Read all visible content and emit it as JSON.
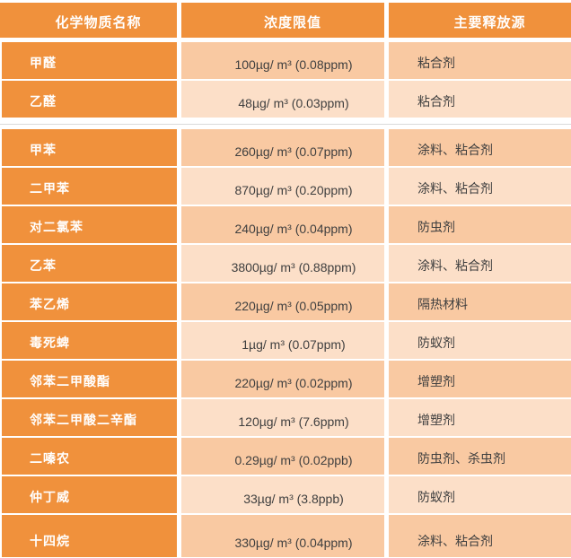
{
  "table": {
    "columns": [
      {
        "label": "化学物质名称"
      },
      {
        "label": "浓度限值"
      },
      {
        "label": "主要释放源"
      }
    ],
    "groups": [
      {
        "rows": [
          {
            "name": "甲醛",
            "limit": "100µg/ m³ (0.08ppm)",
            "source": "粘合剂"
          },
          {
            "name": "乙醛",
            "limit": "48µg/ m³ (0.03ppm)",
            "source": "粘合剂"
          }
        ]
      },
      {
        "rows": [
          {
            "name": "甲苯",
            "limit": "260µg/ m³ (0.07ppm)",
            "source": "涂料、粘合剂"
          },
          {
            "name": "二甲苯",
            "limit": "870µg/ m³ (0.20ppm)",
            "source": "涂料、粘合剂"
          },
          {
            "name": "对二氯苯",
            "limit": "240µg/ m³ (0.04ppm)",
            "source": "防虫剂"
          },
          {
            "name": "乙苯",
            "limit": "3800µg/ m³ (0.88ppm)",
            "source": "涂料、粘合剂"
          },
          {
            "name": "苯乙烯",
            "limit": "220µg/ m³ (0.05ppm)",
            "source": "隔热材料"
          },
          {
            "name": "毒死蜱",
            "limit": "1µg/ m³ (0.07ppm)",
            "source": "防蚁剂"
          },
          {
            "name": "邻苯二甲酸酯",
            "limit": "220µg/ m³ (0.02ppm)",
            "source": "增塑剂"
          },
          {
            "name": "邻苯二甲酸二辛酯",
            "limit": "120µg/ m³ (7.6ppm)",
            "source": "增塑剂"
          },
          {
            "name": "二嗪农",
            "limit": "0.29µg/ m³ (0.02ppb)",
            "source": "防虫剂、杀虫剂"
          },
          {
            "name": "仲丁威",
            "limit": "33µg/ m³ (3.8ppb)",
            "source": "防蚁剂"
          },
          {
            "name": "十四烷",
            "limit": "330µg/ m³ (0.04ppm)",
            "source": "涂料、粘合剂"
          }
        ]
      }
    ]
  },
  "colors": {
    "orange": "#F0913C",
    "row_dark": "#F9C9A2",
    "row_light": "#FCDFC8",
    "value_text": "#3F3F3F",
    "header_text": "#FFFFFF",
    "separator_line": "#D9D9D9"
  },
  "chart_data": {
    "type": "table",
    "title": "",
    "columns": [
      "化学物质名称",
      "浓度限值",
      "主要释放源"
    ],
    "rows": [
      [
        "甲醛",
        "100µg/ m³ (0.08ppm)",
        "粘合剂"
      ],
      [
        "乙醛",
        "48µg/ m³ (0.03ppm)",
        "粘合剂"
      ],
      [
        "甲苯",
        "260µg/ m³ (0.07ppm)",
        "涂料、粘合剂"
      ],
      [
        "二甲苯",
        "870µg/ m³ (0.20ppm)",
        "涂料、粘合剂"
      ],
      [
        "对二氯苯",
        "240µg/ m³ (0.04ppm)",
        "防虫剂"
      ],
      [
        "乙苯",
        "3800µg/ m³ (0.88ppm)",
        "涂料、粘合剂"
      ],
      [
        "苯乙烯",
        "220µg/ m³ (0.05ppm)",
        "隔热材料"
      ],
      [
        "毒死蜱",
        "1µg/ m³ (0.07ppm)",
        "防蚁剂"
      ],
      [
        "邻苯二甲酸酯",
        "220µg/ m³ (0.02ppm)",
        "增塑剂"
      ],
      [
        "邻苯二甲酸二辛酯",
        "120µg/ m³ (7.6ppm)",
        "增塑剂"
      ],
      [
        "二嗪农",
        "0.29µg/ m³ (0.02ppb)",
        "防虫剂、杀虫剂"
      ],
      [
        "仲丁威",
        "33µg/ m³ (3.8ppb)",
        "防蚁剂"
      ],
      [
        "十四烷",
        "330µg/ m³ (0.04ppm)",
        "涂料、粘合剂"
      ]
    ],
    "layout_hints": {
      "groups": [
        [
          0,
          1
        ],
        [
          2,
          12
        ]
      ],
      "row_striping": "alternating dark/light peach, restarts dark per group",
      "first_column_style": "solid orange, white bold text"
    }
  }
}
